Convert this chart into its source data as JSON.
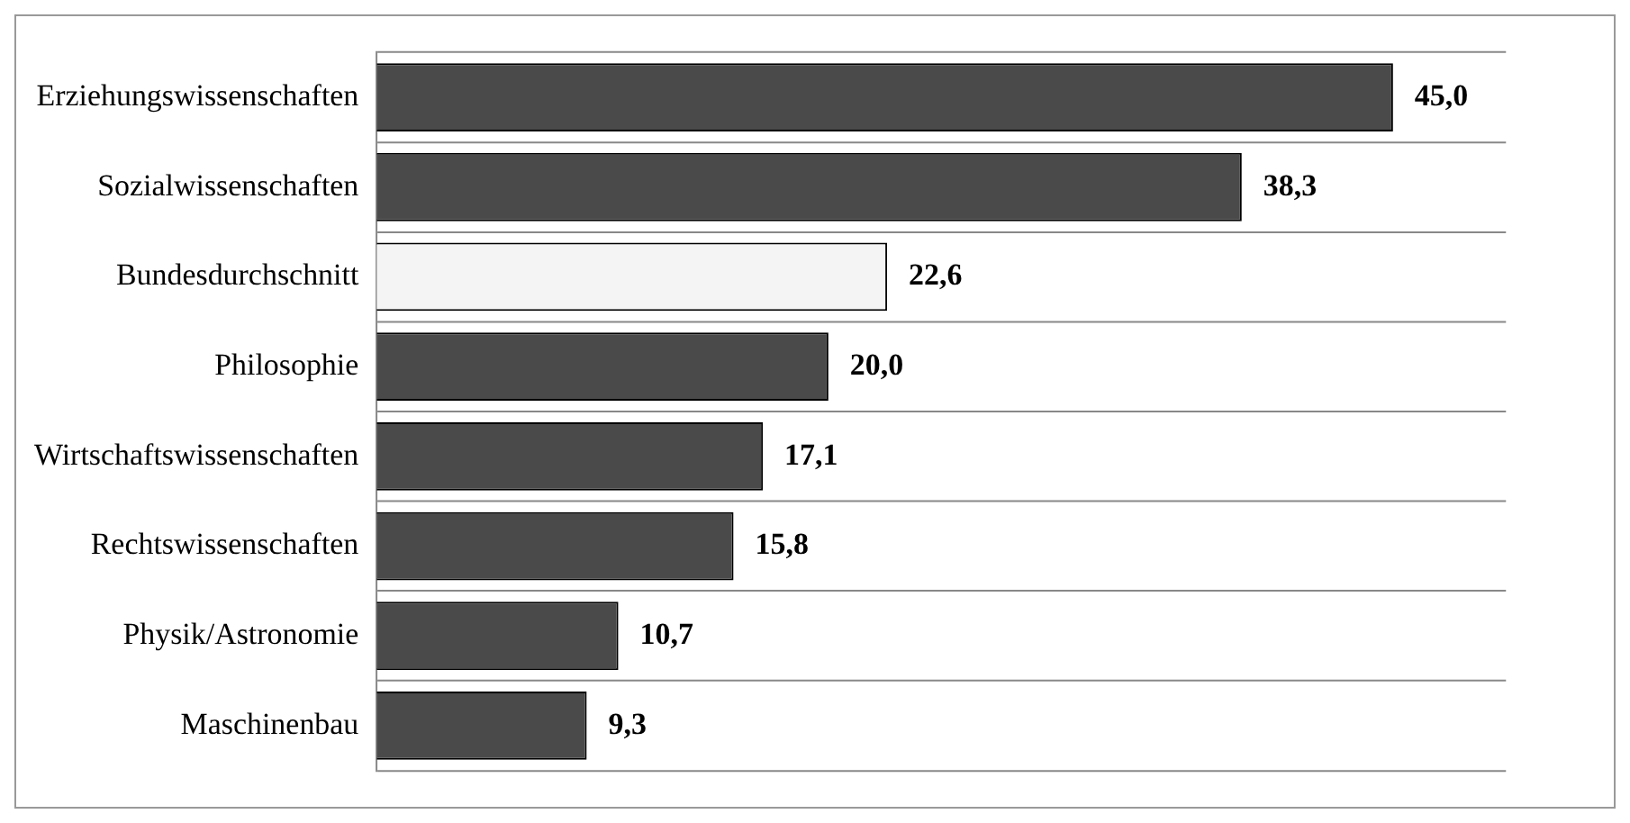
{
  "chart_data": {
    "type": "bar",
    "orientation": "horizontal",
    "categories": [
      "Erziehungswissenschaften",
      "Sozialwissenschaften",
      "Bundesdurchschnitt",
      "Philosophie",
      "Wirtschaftswissenschaften",
      "Rechtswissenschaften",
      "Physik/Astronomie",
      "Maschinenbau"
    ],
    "values": [
      45.0,
      38.3,
      22.6,
      20.0,
      17.1,
      15.8,
      10.7,
      9.3
    ],
    "value_labels": [
      "45,0",
      "38,3",
      "22,6",
      "20,0",
      "17,1",
      "15,8",
      "10,7",
      "9,3"
    ],
    "colors": [
      "#4a4a4a",
      "#4a4a4a",
      "#f4f4f4",
      "#4a4a4a",
      "#4a4a4a",
      "#4a4a4a",
      "#4a4a4a",
      "#4a4a4a"
    ],
    "grid": "y",
    "legend": false
  }
}
